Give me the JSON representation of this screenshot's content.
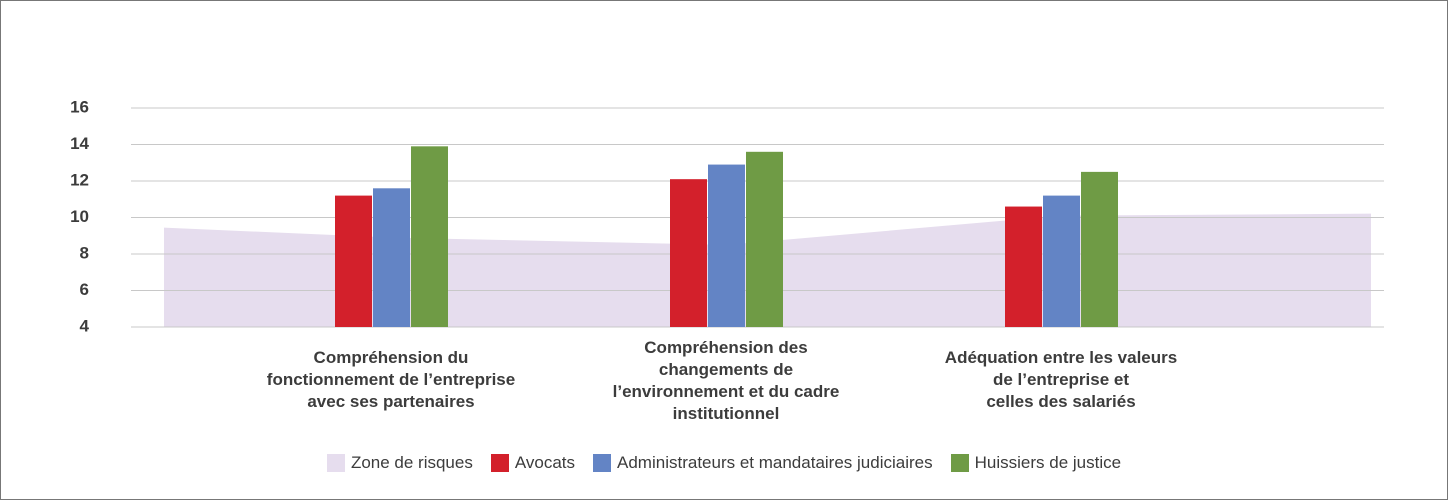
{
  "chart_data": {
    "type": "bar",
    "categories": [
      "Compréhension du\nfonctionnement de l’entreprise\navec ses partenaires",
      "Compréhension des\nchangements de\nl’environnement et du cadre\ninstitutionnel",
      "Adéquation entre les valeurs\nde l’entreprise et\ncelles des salariés"
    ],
    "area": {
      "name": "Zone de risques",
      "color": "#e6ddee",
      "values": [
        8.9,
        8.5,
        10.1
      ]
    },
    "series": [
      {
        "name": "Avocats",
        "color": "#d3202b",
        "values": [
          11.2,
          12.1,
          10.6
        ]
      },
      {
        "name": "Administrateurs et mandataires judiciaires",
        "color": "#6384c5",
        "values": [
          11.6,
          12.9,
          11.2
        ]
      },
      {
        "name": "Huissiers de justice",
        "color": "#6f9b45",
        "values": [
          13.9,
          13.6,
          12.5
        ]
      }
    ],
    "ylim": [
      4,
      16
    ],
    "yticks": [
      4,
      6,
      8,
      10,
      12,
      14,
      16
    ],
    "grid": true
  }
}
